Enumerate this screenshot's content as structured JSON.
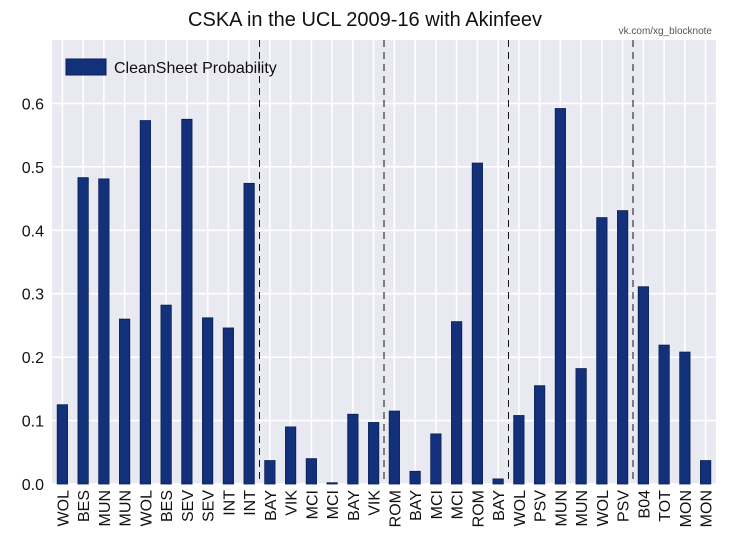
{
  "watermark": "vk.com/xg_blocknote",
  "chart_data": {
    "type": "bar",
    "title": "CSKA in the UCL 2009-16 with Akinfeev",
    "xlabel": "",
    "ylabel": "",
    "ylim": [
      0,
      0.7
    ],
    "yticks": [
      0.0,
      0.1,
      0.2,
      0.3,
      0.4,
      0.5,
      0.6
    ],
    "ytick_labels": [
      "0.0",
      "0.1",
      "0.2",
      "0.3",
      "0.4",
      "0.5",
      "0.6"
    ],
    "grid": true,
    "legend_position": "top-left",
    "bar_color": "#13317a",
    "background": "#e9e9f1",
    "categories": [
      "WOL",
      "BES",
      "MUN",
      "MUN",
      "WOL",
      "BES",
      "SEV",
      "SEV",
      "INT",
      "INT",
      "BAY",
      "VIK",
      "MCI",
      "MCI",
      "BAY",
      "VIK",
      "ROM",
      "BAY",
      "MCI",
      "MCI",
      "ROM",
      "BAY",
      "WOL",
      "PSV",
      "MUN",
      "MUN",
      "WOL",
      "PSV",
      "B04",
      "TOT",
      "MON",
      "MON"
    ],
    "series": [
      {
        "name": "CleanSheet Probability",
        "values": [
          0.125,
          0.483,
          0.481,
          0.26,
          0.573,
          0.282,
          0.575,
          0.262,
          0.246,
          0.474,
          0.037,
          0.09,
          0.04,
          0.002,
          0.11,
          0.097,
          0.115,
          0.02,
          0.079,
          0.256,
          0.506,
          0.008,
          0.108,
          0.155,
          0.592,
          0.182,
          0.42,
          0.431,
          0.311,
          0.219,
          0.208,
          0.037
        ]
      }
    ],
    "separators_after_index": [
      9,
      15,
      21,
      27
    ]
  }
}
